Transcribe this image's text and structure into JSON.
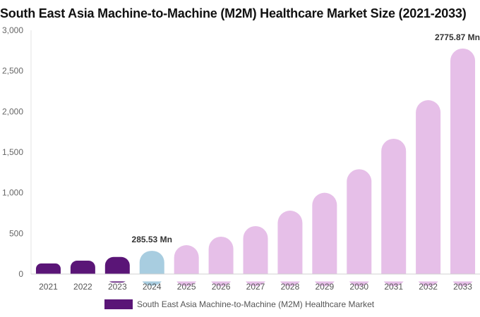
{
  "colors": {
    "historical": "#5a1577",
    "base_year": "#a8cde0",
    "forecast": "#e6bfe8"
  },
  "chart_data": {
    "type": "bar",
    "title": "South East Asia Machine-to-Machine (M2M) Healthcare Market Size (2021-2033)",
    "categories": [
      "2021",
      "2022",
      "2023",
      "2024",
      "2025",
      "2026",
      "2027",
      "2028",
      "2029",
      "2030",
      "2031",
      "2032",
      "2033"
    ],
    "series": [
      {
        "name": "South East Asia Machine-to-Machine (M2M) Healthcare Market",
        "values": [
          130,
          165,
          210,
          285.53,
          355,
          460,
          590,
          780,
          1000,
          1290,
          1665,
          2140,
          2775.87
        ]
      }
    ],
    "bar_segments": [
      "historical",
      "historical",
      "historical",
      "base_year",
      "forecast",
      "forecast",
      "forecast",
      "forecast",
      "forecast",
      "forecast",
      "forecast",
      "forecast",
      "forecast"
    ],
    "yticks": [
      "0",
      "500",
      "1,000",
      "1,500",
      "2,000",
      "2,500",
      "3,000"
    ],
    "ylim": [
      0,
      3000
    ],
    "annotations": [
      {
        "category": "2024",
        "text": "285.53 Mn"
      },
      {
        "category": "2033",
        "text": "2775.87 Mn"
      }
    ],
    "legend_position": "bottom"
  }
}
